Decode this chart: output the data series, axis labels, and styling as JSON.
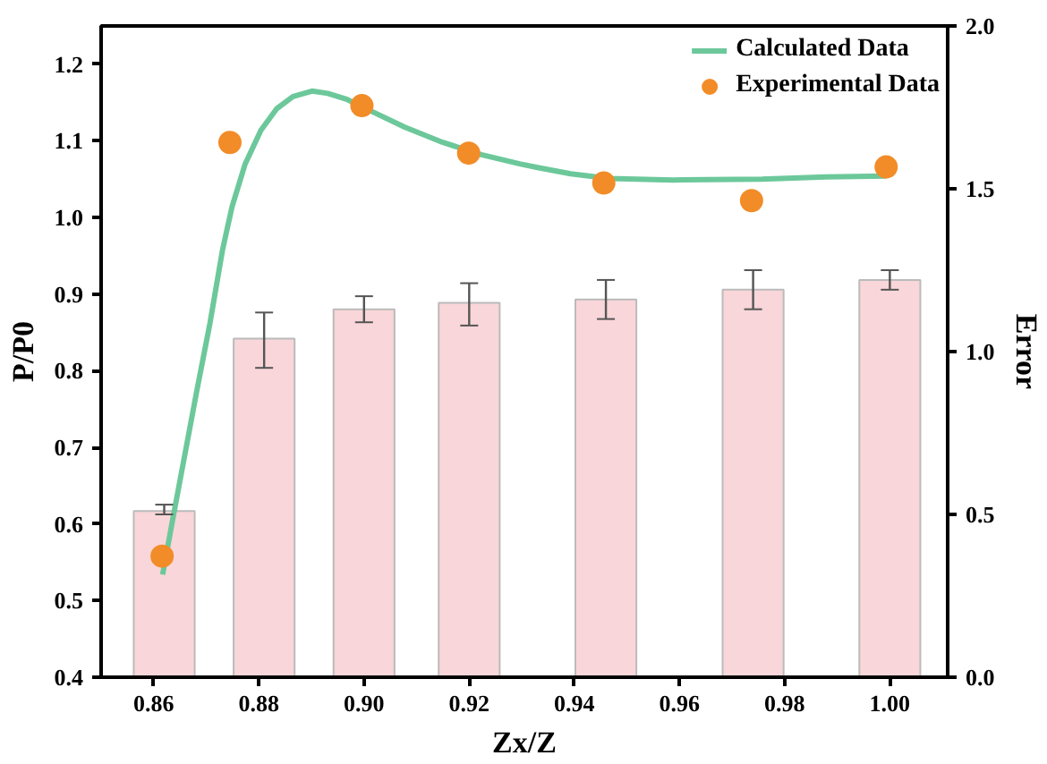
{
  "chart_data": {
    "type": "line",
    "xlabel": "Zx/Z",
    "ylabel": "P/P0",
    "y2label": "Error",
    "xlim": [
      0.85,
      1.011
    ],
    "xticks": [
      {
        "value": 0.86,
        "label": "0.86"
      },
      {
        "value": 0.88,
        "label": "0.88"
      },
      {
        "value": 0.9,
        "label": "0.90"
      },
      {
        "value": 0.92,
        "label": "0.92"
      },
      {
        "value": 0.94,
        "label": "0.94"
      },
      {
        "value": 0.96,
        "label": "0.96"
      },
      {
        "value": 0.98,
        "label": "0.98"
      },
      {
        "value": 1.0,
        "label": "1.00"
      }
    ],
    "ylim": [
      0.4,
      1.25
    ],
    "yticks": [
      0.4,
      0.5,
      0.6,
      0.7,
      0.8,
      0.9,
      {
        "value": 1.0,
        "label": "1.0"
      },
      1.1,
      1.2
    ],
    "y2lim": [
      0,
      2.0
    ],
    "y2ticks": [
      {
        "value": 0,
        "label": "0.0"
      },
      {
        "value": 0.5,
        "label": "0.5"
      },
      {
        "value": 1.0,
        "label": "1.0"
      },
      {
        "value": 1.5,
        "label": "1.5"
      },
      {
        "value": 2.0,
        "label": "2.0"
      }
    ],
    "grid": false,
    "legend": "top right",
    "series": [
      {
        "type": "bar",
        "axis": "y2",
        "color": "#f9d6d9",
        "x": [
          0.862,
          0.881,
          0.9,
          0.92,
          0.946,
          0.974,
          1.0
        ],
        "values": [
          0.51,
          1.04,
          1.13,
          1.15,
          1.16,
          1.19,
          1.22
        ],
        "errors": [
          [
            0.5,
            0.53
          ],
          [
            0.95,
            1.12
          ],
          [
            1.09,
            1.17
          ],
          [
            1.08,
            1.21
          ],
          [
            1.1,
            1.22
          ],
          [
            1.13,
            1.25
          ],
          [
            1.19,
            1.25
          ]
        ]
      },
      {
        "name": "Calculated Data",
        "color": "#6cc89a",
        "x": [
          0.8617,
          0.8634,
          0.8658,
          0.8682,
          0.8707,
          0.8731,
          0.8749,
          0.8774,
          0.8804,
          0.8834,
          0.8865,
          0.8901,
          0.8931,
          0.8968,
          0.9016,
          0.9077,
          0.915,
          0.9223,
          0.9296,
          0.9332,
          0.9393,
          0.9466,
          0.9587,
          0.9757,
          0.9879,
          0.9994
        ],
        "values": [
          0.534,
          0.598,
          0.686,
          0.774,
          0.862,
          0.958,
          1.014,
          1.07,
          1.114,
          1.142,
          1.158,
          1.165,
          1.162,
          1.154,
          1.138,
          1.118,
          1.098,
          1.082,
          1.07,
          1.065,
          1.057,
          1.051,
          1.049,
          1.05,
          1.053,
          1.054
        ]
      },
      {
        "type": "scatter",
        "name": "Experimental Data",
        "color": "#f28c28",
        "marker": "circle",
        "x": [
          0.8616,
          0.8745,
          0.8996,
          0.9199,
          0.9456,
          0.9737,
          0.9993
        ],
        "values": [
          0.558,
          1.098,
          1.146,
          1.084,
          1.045,
          1.022,
          1.066
        ]
      }
    ]
  }
}
